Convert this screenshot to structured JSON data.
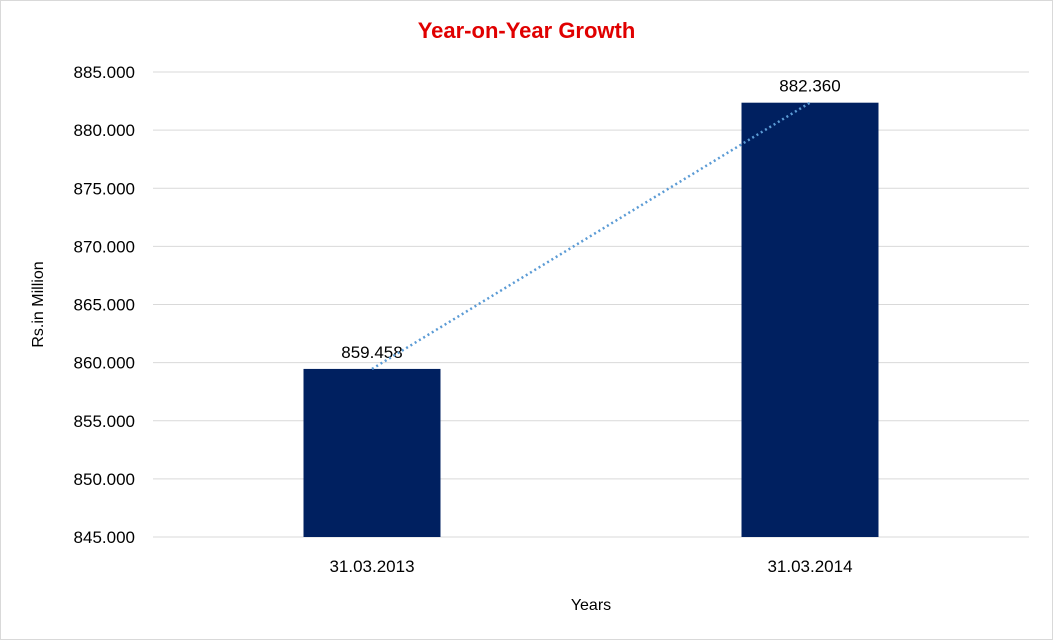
{
  "chart_data": {
    "type": "bar",
    "title": "Year-on-Year Growth",
    "xlabel": "Years",
    "ylabel": "Rs.in Million",
    "categories": [
      "31.03.2013",
      "31.03.2014"
    ],
    "values": [
      859.458,
      882.36
    ],
    "data_labels": [
      "859.458",
      "882.360"
    ],
    "ylim": [
      845,
      885
    ],
    "y_ticks": [
      "845.000",
      "850.000",
      "855.000",
      "860.000",
      "865.000",
      "870.000",
      "875.000",
      "880.000",
      "885.000"
    ],
    "grid": true,
    "trendline": "linear, dotted",
    "legend": "none",
    "colors": {
      "bar": "#002060",
      "title": "#e00000",
      "trendline": "#5b9bd5",
      "grid": "#d9d9d9"
    }
  }
}
